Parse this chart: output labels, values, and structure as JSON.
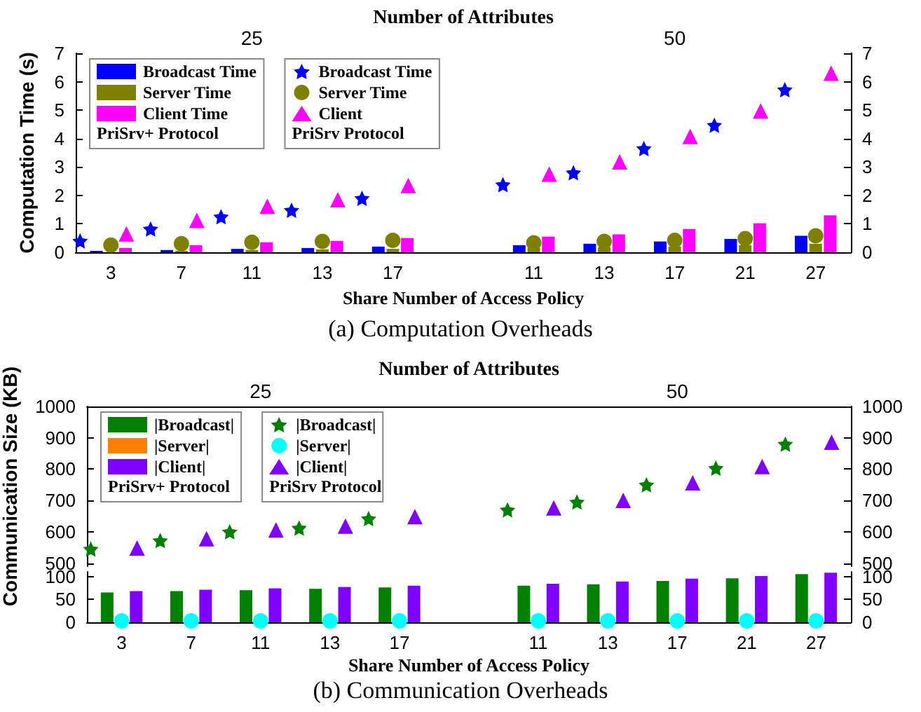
{
  "chart_data": [
    {
      "type": "bar",
      "title": "(a) Computation Overheads",
      "xlabel": "Share Number of Access Policy",
      "ylabel": "Computation Time (s)",
      "x2label": "Number of Attributes",
      "categories": [
        "3",
        "7",
        "11",
        "13",
        "17",
        null,
        "11",
        "13",
        "17",
        "21",
        "27"
      ],
      "ylim": [
        0,
        7
      ],
      "yticks": [
        0,
        1,
        2,
        3,
        4,
        5,
        6,
        7
      ],
      "y2lim": [
        0,
        7
      ],
      "y2ticks": [
        0,
        1,
        2,
        3,
        4,
        5,
        6,
        7
      ],
      "grid": false,
      "legend": "top left",
      "annotations": [
        "25",
        "50",
        "PriSrv+ Protocol",
        "PriSrv Protocol"
      ],
      "series": [
        {
          "name": "Broadcast Time",
          "color": "#0000ff",
          "values": [
            0.05,
            0.08,
            0.12,
            0.15,
            0.2,
            null,
            0.25,
            0.3,
            0.38,
            0.47,
            0.58
          ]
        },
        {
          "name": "Server Time",
          "color": "#808000",
          "values": [
            null,
            0.05,
            0.08,
            0.1,
            0.12,
            null,
            0.15,
            0.18,
            0.2,
            0.25,
            0.3
          ]
        },
        {
          "name": "Client Time",
          "color": "#ff00ff",
          "values": [
            0.15,
            0.25,
            0.35,
            0.4,
            0.5,
            null,
            0.55,
            0.63,
            0.82,
            1.02,
            1.3
          ]
        },
        {
          "name": "Broadcast Time",
          "type": "scatter",
          "marker": "star",
          "color": "#0000ff",
          "values": [
            0.4,
            0.82,
            1.25,
            1.48,
            1.9,
            null,
            2.38,
            2.8,
            3.65,
            4.47,
            5.72
          ]
        },
        {
          "name": "Server Time",
          "type": "scatter",
          "marker": "circle",
          "color": "#808000",
          "values": [
            0.25,
            0.3,
            0.35,
            0.38,
            0.42,
            null,
            0.33,
            0.38,
            0.42,
            0.48,
            0.58
          ]
        },
        {
          "name": "Client",
          "type": "scatter",
          "marker": "triangle",
          "color": "#ff00ff",
          "values": [
            0.65,
            1.12,
            1.62,
            1.85,
            2.35,
            null,
            2.75,
            3.18,
            4.07,
            4.97,
            6.3
          ]
        }
      ]
    },
    {
      "type": "bar",
      "ylabel": "Communication Size (KB)",
      "x2label": "Number of Attributes",
      "categories": [
        "3",
        "7",
        "11",
        "13",
        "17",
        null,
        "11",
        "13",
        "17",
        "21",
        "27"
      ],
      "ylim": [
        490,
        1000
      ],
      "yticks": [
        500,
        600,
        700,
        800,
        900,
        1000
      ],
      "y2lim": [
        490,
        1000
      ],
      "y2ticks": [
        500,
        600,
        700,
        800,
        900,
        1000
      ],
      "tick_labels": "y",
      "grid": false,
      "legend": "top left",
      "annotations": [
        "25",
        "50",
        "PriSrv+ Protocol",
        "PriSrv Protocol"
      ],
      "series": [
        {
          "name": "|Broadcast|",
          "color": "#008000",
          "values": [
            null,
            null,
            null,
            null,
            null,
            null,
            null,
            null,
            null,
            null,
            null
          ]
        },
        {
          "name": "|Server|",
          "color": "#ff8000",
          "values": [
            null,
            null,
            null,
            null,
            null,
            null,
            null,
            null,
            null,
            null,
            null
          ]
        },
        {
          "name": "|Client|",
          "color": "#8000ff",
          "values": [
            null,
            null,
            null,
            null,
            null,
            null,
            null,
            null,
            null,
            null,
            null
          ]
        },
        {
          "name": "|Broadcast|",
          "type": "scatter",
          "marker": "star",
          "color": "#008000",
          "values": [
            545,
            572,
            600,
            612,
            642,
            null,
            670,
            695,
            750,
            803,
            880
          ]
        },
        {
          "name": "|Server|",
          "type": "scatter",
          "marker": "circle",
          "color": "#00ffff",
          "values": [
            null,
            null,
            null,
            null,
            null,
            null,
            null,
            null,
            null,
            null,
            null
          ]
        },
        {
          "name": "|Client|",
          "type": "scatter",
          "marker": "triangle",
          "color": "#8000ff",
          "values": [
            548,
            578,
            606,
            618,
            648,
            null,
            676,
            700,
            756,
            808,
            886
          ]
        }
      ]
    },
    {
      "type": "bar",
      "title": "(b) Communication Overheads",
      "xlabel": "Share Number of Access Policy",
      "categories": [
        "3",
        "7",
        "11",
        "13",
        "17",
        null,
        "11",
        "13",
        "17",
        "21",
        "27"
      ],
      "ylim": [
        0,
        110
      ],
      "yticks": [
        0,
        50,
        100
      ],
      "y2lim": [
        0,
        110
      ],
      "y2ticks": [
        0,
        50,
        100
      ],
      "grid": false,
      "series": [
        {
          "color": "#008000",
          "values": [
            65,
            68,
            70,
            73,
            76,
            null,
            80,
            83,
            90,
            96,
            105
          ]
        },
        {
          "color": "#ff8000",
          "values": [
            null,
            null,
            null,
            null,
            null,
            null,
            null,
            null,
            null,
            null,
            null
          ]
        },
        {
          "color": "#8000ff",
          "values": [
            68,
            71,
            74,
            77,
            80,
            null,
            84,
            89,
            95,
            101,
            108
          ]
        },
        {
          "type": "scatter",
          "marker": "circle",
          "color": "#00ffff",
          "values": [
            3,
            3,
            3,
            3,
            3,
            null,
            3,
            3,
            3,
            3,
            3
          ]
        }
      ]
    }
  ]
}
